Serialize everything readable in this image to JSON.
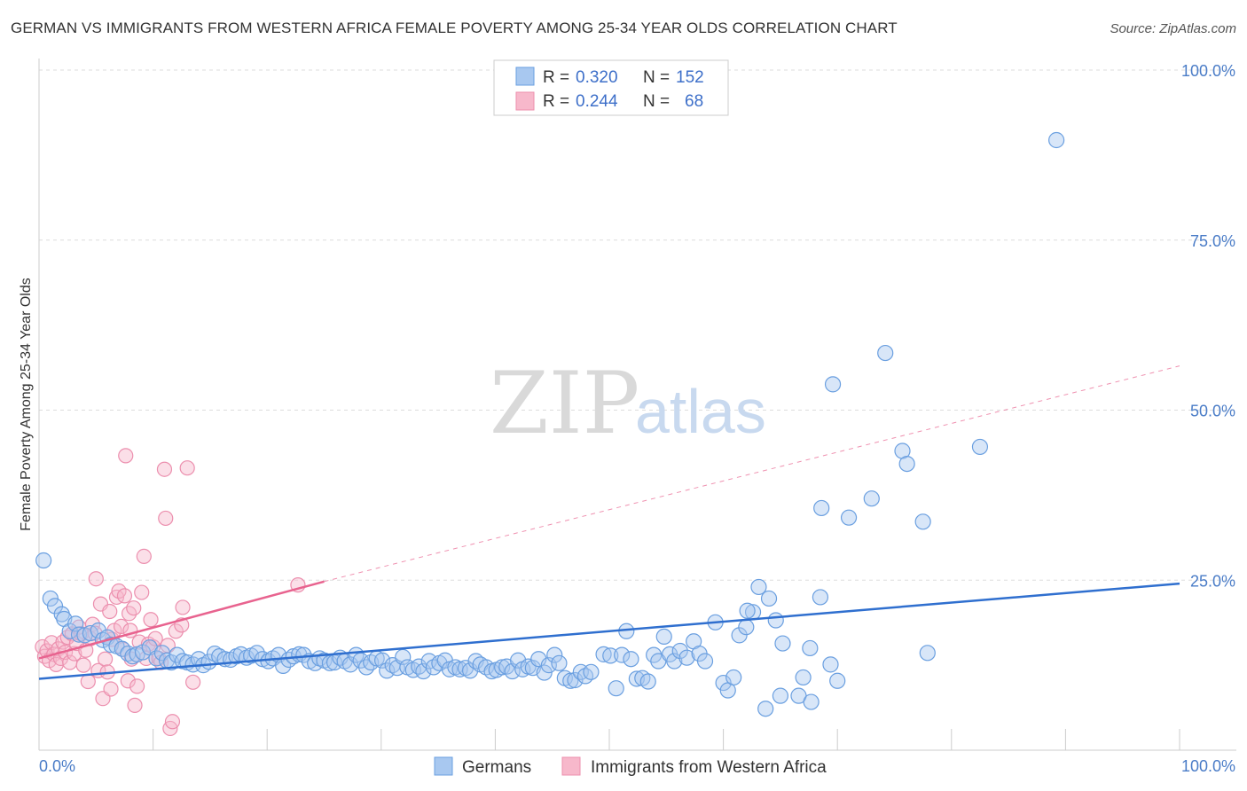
{
  "title": "GERMAN VS IMMIGRANTS FROM WESTERN AFRICA FEMALE POVERTY AMONG 25-34 YEAR OLDS CORRELATION CHART",
  "source": "Source: ZipAtlas.com",
  "watermark": {
    "zip": "ZIP",
    "atlas": "atlas"
  },
  "legend": {
    "rows": [
      {
        "r_label": "R = ",
        "r_value": "0.320",
        "n_label": "N = ",
        "n_value": "152"
      },
      {
        "r_label": "R = ",
        "r_value": "0.244",
        "n_label": "N = ",
        "n_value": "68"
      }
    ]
  },
  "colors": {
    "germans_fill": "#a8c8f0",
    "germans_stroke": "#6a9fe0",
    "germans_line": "#2f6fcf",
    "immigrants_fill": "#f7b8cb",
    "immigrants_stroke": "#ec8fae",
    "immigrants_line": "#e8638f",
    "grid": "#dddddd",
    "axis": "#cccccc"
  },
  "chart_data": {
    "type": "scatter",
    "title": "GERMAN VS IMMIGRANTS FROM WESTERN AFRICA FEMALE POVERTY AMONG 25-34 YEAR OLDS CORRELATION CHART",
    "xlabel": "",
    "ylabel": "Female Poverty Among 25-34 Year Olds",
    "xlim": [
      0,
      100
    ],
    "ylim": [
      0,
      100
    ],
    "x_tick_labels": [
      "0.0%",
      "100.0%"
    ],
    "y_ticks": [
      25,
      50,
      75,
      100
    ],
    "y_tick_labels": [
      "25.0%",
      "50.0%",
      "75.0%",
      "100.0%"
    ],
    "grid": true,
    "legend_position": "top-center",
    "series": [
      {
        "name": "Germans",
        "r": 0.32,
        "n": 152,
        "trend": {
          "x": [
            0,
            100
          ],
          "y": [
            10.5,
            24.5
          ],
          "dashed_extension": false
        },
        "points": [
          [
            0.4,
            27.9
          ],
          [
            1,
            22.3
          ],
          [
            1.4,
            21.2
          ],
          [
            2,
            20
          ],
          [
            2.2,
            19.3
          ],
          [
            2.7,
            17.5
          ],
          [
            3.2,
            18.6
          ],
          [
            3.5,
            17
          ],
          [
            4,
            16.9
          ],
          [
            4.5,
            17.2
          ],
          [
            5.2,
            17.6
          ],
          [
            5.6,
            16.2
          ],
          [
            6,
            16.6
          ],
          [
            6.3,
            15.5
          ],
          [
            6.8,
            15.3
          ],
          [
            7.3,
            14.9
          ],
          [
            7.8,
            14.2
          ],
          [
            8.2,
            13.8
          ],
          [
            8.6,
            14.1
          ],
          [
            9.1,
            14.4
          ],
          [
            9.7,
            15.1
          ],
          [
            10.3,
            13.5
          ],
          [
            10.8,
            14.3
          ],
          [
            11.2,
            13.2
          ],
          [
            11.6,
            12.9
          ],
          [
            12.1,
            14
          ],
          [
            12.6,
            13.1
          ],
          [
            13,
            12.9
          ],
          [
            13.5,
            12.6
          ],
          [
            14,
            13.4
          ],
          [
            14.4,
            12.5
          ],
          [
            14.9,
            13
          ],
          [
            15.4,
            14.2
          ],
          [
            15.8,
            13.8
          ],
          [
            16.3,
            13.4
          ],
          [
            16.8,
            13.3
          ],
          [
            17.3,
            13.8
          ],
          [
            17.7,
            14.1
          ],
          [
            18.2,
            13.6
          ],
          [
            18.6,
            13.9
          ],
          [
            19.1,
            14.3
          ],
          [
            19.6,
            13.4
          ],
          [
            20.1,
            13.1
          ],
          [
            20.5,
            13.5
          ],
          [
            21,
            14
          ],
          [
            21.4,
            12.4
          ],
          [
            21.9,
            13.3
          ],
          [
            22.3,
            13.8
          ],
          [
            22.8,
            14.1
          ],
          [
            23.2,
            14
          ],
          [
            23.7,
            13.1
          ],
          [
            24.2,
            12.8
          ],
          [
            24.6,
            13.5
          ],
          [
            25,
            13.2
          ],
          [
            25.5,
            12.8
          ],
          [
            25.9,
            12.9
          ],
          [
            26.4,
            13.6
          ],
          [
            26.8,
            13.1
          ],
          [
            27.3,
            12.6
          ],
          [
            27.8,
            14
          ],
          [
            28.2,
            13.2
          ],
          [
            28.7,
            12.2
          ],
          [
            29.1,
            12.9
          ],
          [
            29.6,
            13.5
          ],
          [
            30.1,
            13.2
          ],
          [
            30.5,
            11.7
          ],
          [
            31,
            12.5
          ],
          [
            31.4,
            12.1
          ],
          [
            31.9,
            13.7
          ],
          [
            32.3,
            12.2
          ],
          [
            32.8,
            11.8
          ],
          [
            33.3,
            12.3
          ],
          [
            33.7,
            11.6
          ],
          [
            34.2,
            13.1
          ],
          [
            34.6,
            12.2
          ],
          [
            35.1,
            12.8
          ],
          [
            35.6,
            13.2
          ],
          [
            36,
            11.9
          ],
          [
            36.5,
            12.2
          ],
          [
            36.9,
            11.9
          ],
          [
            37.4,
            12.1
          ],
          [
            37.8,
            11.7
          ],
          [
            38.3,
            13.1
          ],
          [
            38.7,
            12.6
          ],
          [
            39.2,
            12.2
          ],
          [
            39.7,
            11.6
          ],
          [
            40.1,
            11.8
          ],
          [
            40.6,
            12.2
          ],
          [
            41,
            12.3
          ],
          [
            41.5,
            11.6
          ],
          [
            42,
            13.2
          ],
          [
            42.4,
            11.9
          ],
          [
            42.9,
            12.3
          ],
          [
            43.3,
            12.1
          ],
          [
            43.8,
            13.4
          ],
          [
            44.3,
            11.4
          ],
          [
            44.7,
            12.5
          ],
          [
            45.2,
            14
          ],
          [
            45.6,
            12.8
          ],
          [
            46.1,
            10.6
          ],
          [
            46.6,
            10.2
          ],
          [
            47,
            10.3
          ],
          [
            47.5,
            11.5
          ],
          [
            47.9,
            10.9
          ],
          [
            48.4,
            11.5
          ],
          [
            49.5,
            14.1
          ],
          [
            50.1,
            13.9
          ],
          [
            50.6,
            9.1
          ],
          [
            51.1,
            14
          ],
          [
            51.5,
            17.5
          ],
          [
            51.9,
            13.4
          ],
          [
            52.4,
            10.5
          ],
          [
            52.9,
            10.6
          ],
          [
            53.4,
            10.1
          ],
          [
            53.9,
            14
          ],
          [
            54.3,
            13.1
          ],
          [
            54.8,
            16.7
          ],
          [
            55.3,
            14.1
          ],
          [
            55.7,
            13.1
          ],
          [
            56.2,
            14.6
          ],
          [
            56.8,
            13.6
          ],
          [
            57.4,
            16
          ],
          [
            57.9,
            14.2
          ],
          [
            58.4,
            13.1
          ],
          [
            59.3,
            18.8
          ],
          [
            60,
            9.9
          ],
          [
            60.4,
            8.8
          ],
          [
            60.9,
            10.7
          ],
          [
            61.4,
            16.9
          ],
          [
            62,
            18.1
          ],
          [
            62.6,
            20.3
          ],
          [
            62.1,
            20.5
          ],
          [
            63.1,
            24
          ],
          [
            64,
            22.3
          ],
          [
            64.6,
            19.1
          ],
          [
            65.2,
            15.7
          ],
          [
            67,
            10.7
          ],
          [
            67.6,
            15
          ],
          [
            68.5,
            22.5
          ],
          [
            69.4,
            12.6
          ],
          [
            70,
            10.2
          ],
          [
            63.7,
            6.1
          ],
          [
            65,
            8
          ],
          [
            66.6,
            8
          ],
          [
            67.7,
            7.1
          ],
          [
            68.6,
            35.6
          ],
          [
            69.6,
            53.8
          ],
          [
            71,
            34.2
          ],
          [
            73,
            37
          ],
          [
            74.2,
            58.4
          ],
          [
            75.7,
            44
          ],
          [
            76.1,
            42.1
          ],
          [
            77.5,
            33.6
          ],
          [
            77.9,
            14.3
          ],
          [
            82.5,
            44.6
          ],
          [
            89.2,
            89.7
          ]
        ]
      },
      {
        "name": "Immigrants from Western Africa",
        "r": 0.244,
        "n": 68,
        "trend": {
          "x": [
            0,
            25
          ],
          "y": [
            13.5,
            24.8
          ],
          "dashed_extension": {
            "x": [
              25,
              100
            ],
            "y": [
              24.8,
              56.5
            ]
          }
        },
        "points": [
          [
            0.3,
            15.2
          ],
          [
            0.5,
            13.8
          ],
          [
            0.7,
            14.6
          ],
          [
            0.9,
            13.2
          ],
          [
            1.1,
            15.8
          ],
          [
            1.3,
            14.1
          ],
          [
            1.5,
            12.6
          ],
          [
            1.7,
            14.9
          ],
          [
            1.9,
            13.5
          ],
          [
            2.1,
            15.9
          ],
          [
            2.3,
            14.4
          ],
          [
            2.5,
            16.6
          ],
          [
            2.7,
            12.9
          ],
          [
            2.9,
            17.1
          ],
          [
            3.1,
            14.2
          ],
          [
            3.3,
            15.7
          ],
          [
            3.5,
            18.1
          ],
          [
            3.7,
            17.1
          ],
          [
            3.9,
            12.5
          ],
          [
            4.1,
            14.7
          ],
          [
            4.3,
            10.1
          ],
          [
            4.5,
            16.4
          ],
          [
            4.7,
            18.5
          ],
          [
            4.9,
            17.2
          ],
          [
            5,
            25.2
          ],
          [
            5.2,
            11.7
          ],
          [
            5.4,
            21.5
          ],
          [
            5.6,
            7.6
          ],
          [
            5.8,
            13.4
          ],
          [
            6,
            11.5
          ],
          [
            6.2,
            20.4
          ],
          [
            6.3,
            9
          ],
          [
            6.4,
            16.3
          ],
          [
            6.6,
            17.6
          ],
          [
            6.8,
            22.5
          ],
          [
            7,
            23.4
          ],
          [
            7.2,
            18.2
          ],
          [
            7.4,
            14.8
          ],
          [
            7.5,
            22.7
          ],
          [
            7.6,
            43.3
          ],
          [
            7.8,
            10.2
          ],
          [
            7.9,
            20.1
          ],
          [
            8,
            17.6
          ],
          [
            8.1,
            13.4
          ],
          [
            8.3,
            20.9
          ],
          [
            8.4,
            6.6
          ],
          [
            8.6,
            9.4
          ],
          [
            8.8,
            15.9
          ],
          [
            9,
            23.2
          ],
          [
            9.2,
            28.5
          ],
          [
            9.4,
            13.5
          ],
          [
            9.6,
            15.6
          ],
          [
            9.8,
            19.2
          ],
          [
            10,
            15.2
          ],
          [
            10.2,
            16.4
          ],
          [
            10.5,
            13.5
          ],
          [
            10.7,
            12.9
          ],
          [
            11,
            41.3
          ],
          [
            11.1,
            34.1
          ],
          [
            11.3,
            15.4
          ],
          [
            11.5,
            3.2
          ],
          [
            11.7,
            4.2
          ],
          [
            12,
            17.5
          ],
          [
            12.5,
            18.4
          ],
          [
            12.6,
            21
          ],
          [
            13,
            41.5
          ],
          [
            13.5,
            10
          ],
          [
            22.7,
            24.3
          ]
        ]
      }
    ]
  }
}
